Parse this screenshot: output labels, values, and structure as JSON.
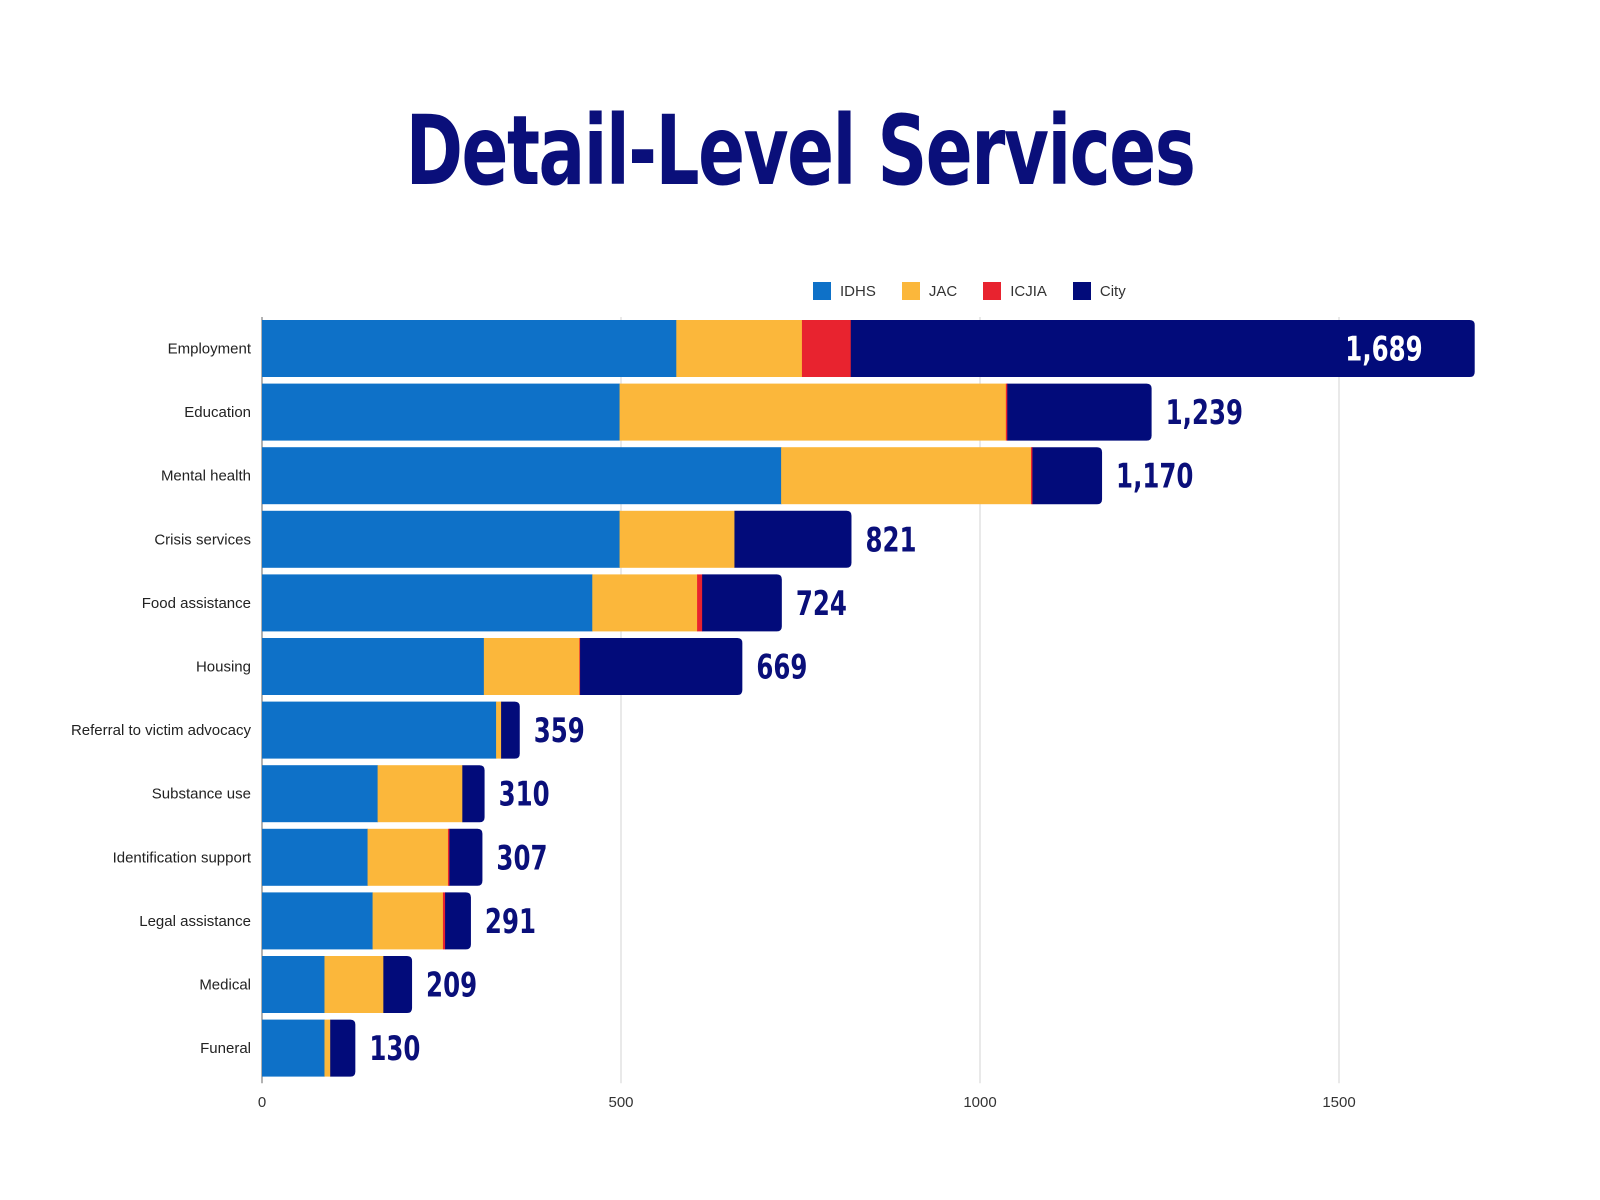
{
  "chart_data": {
    "type": "bar",
    "orientation": "horizontal",
    "stacked": true,
    "title": "Detail-Level Services",
    "categories": [
      "Employment",
      "Education",
      "Mental health",
      "Crisis services",
      "Food assistance",
      "Housing",
      "Referral to victim advocacy",
      "Substance use",
      "Identification support",
      "Legal assistance",
      "Medical",
      "Funeral"
    ],
    "series": [
      {
        "name": "IDHS",
        "color": "#0e71c8",
        "values": [
          577,
          498,
          723,
          498,
          460,
          309,
          326,
          161,
          147,
          154,
          87,
          87
        ]
      },
      {
        "name": "JAC",
        "color": "#fbb73b",
        "values": [
          175,
          538,
          348,
          160,
          146,
          133,
          7,
          118,
          112,
          98,
          82,
          8
        ]
      },
      {
        "name": "ICJIA",
        "color": "#e8232f",
        "values": [
          68,
          2,
          2,
          0,
          7,
          1,
          0,
          0,
          2,
          3,
          0,
          0
        ]
      },
      {
        "name": "City",
        "color": "#020b7a",
        "values": [
          869,
          201,
          97,
          163,
          111,
          226,
          26,
          31,
          46,
          36,
          40,
          35
        ]
      }
    ],
    "totals": [
      "1,689",
      "1,239",
      "1,170",
      "821",
      "724",
      "669",
      "359",
      "310",
      "307",
      "291",
      "209",
      "130"
    ],
    "xlim": [
      0,
      1700
    ],
    "xticks": [
      "0",
      "500",
      "1000",
      "1500"
    ],
    "grid": true,
    "legend_position": "top-right",
    "total_label_color": "#0a0f7a"
  }
}
